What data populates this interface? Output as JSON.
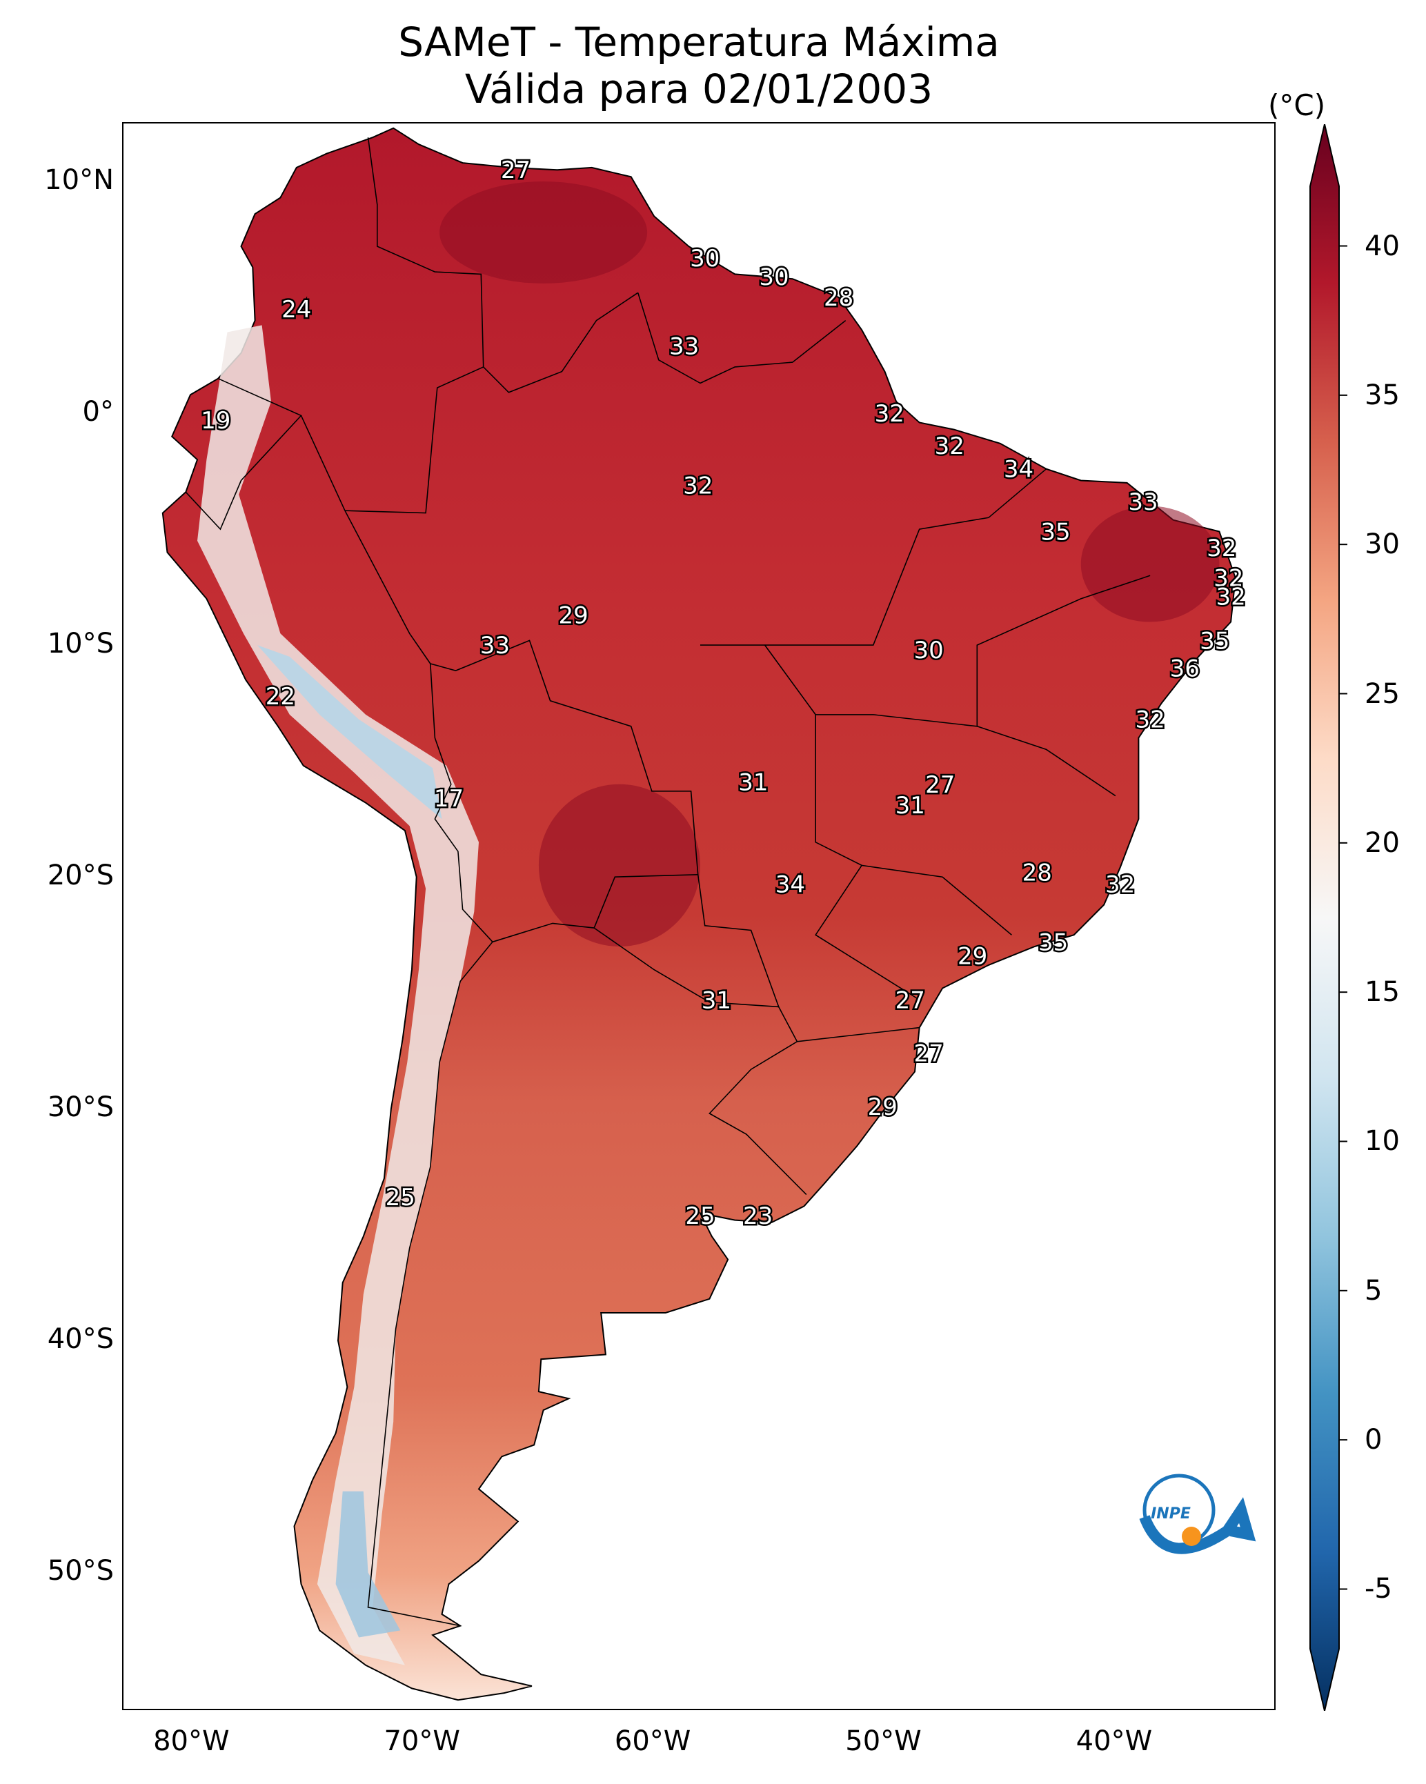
{
  "title": {
    "line1": "SAMeT - Temperatura Máxima",
    "line2": "Válida para 02/01/2003"
  },
  "map": {
    "lat_range": [
      -56,
      12.5
    ],
    "lon_range": [
      -83,
      -33
    ],
    "lat_labels": [
      {
        "lat": 10,
        "text": "10°N"
      },
      {
        "lat": 0,
        "text": "0°"
      },
      {
        "lat": -10,
        "text": "10°S"
      },
      {
        "lat": -20,
        "text": "20°S"
      },
      {
        "lat": -30,
        "text": "30°S"
      },
      {
        "lat": -40,
        "text": "40°S"
      },
      {
        "lat": -50,
        "text": "50°S"
      }
    ],
    "lon_labels": [
      {
        "lon": -80,
        "text": "80°W"
      },
      {
        "lon": -70,
        "text": "70°W"
      },
      {
        "lon": -60,
        "text": "60°W"
      },
      {
        "lon": -50,
        "text": "50°W"
      },
      {
        "lon": -40,
        "text": "40°W"
      }
    ],
    "contour_labels": [
      {
        "lon": -66,
        "lat": 10.5,
        "text": "27"
      },
      {
        "lon": -57.8,
        "lat": 6.7,
        "text": "30"
      },
      {
        "lon": -54.8,
        "lat": 5.9,
        "text": "30"
      },
      {
        "lon": -52,
        "lat": 5,
        "text": "28"
      },
      {
        "lon": -75.5,
        "lat": 4.5,
        "text": "24"
      },
      {
        "lon": -58.7,
        "lat": 2.9,
        "text": "33"
      },
      {
        "lon": -49.8,
        "lat": 0,
        "text": "32"
      },
      {
        "lon": -79,
        "lat": -0.3,
        "text": "19"
      },
      {
        "lon": -47.2,
        "lat": -1.4,
        "text": "32"
      },
      {
        "lon": -44.2,
        "lat": -2.4,
        "text": "34"
      },
      {
        "lon": -38.8,
        "lat": -3.8,
        "text": "33"
      },
      {
        "lon": -58.1,
        "lat": -3.1,
        "text": "32"
      },
      {
        "lon": -42.6,
        "lat": -5.1,
        "text": "35"
      },
      {
        "lon": -35.4,
        "lat": -5.8,
        "text": "32"
      },
      {
        "lon": -35.1,
        "lat": -7.1,
        "text": "32"
      },
      {
        "lon": -35,
        "lat": -7.9,
        "text": "32"
      },
      {
        "lon": -63.5,
        "lat": -8.7,
        "text": "29"
      },
      {
        "lon": -35.7,
        "lat": -9.8,
        "text": "35"
      },
      {
        "lon": -37,
        "lat": -11,
        "text": "36"
      },
      {
        "lon": -48.1,
        "lat": -10.2,
        "text": "30"
      },
      {
        "lon": -66.9,
        "lat": -10,
        "text": "33"
      },
      {
        "lon": -76.2,
        "lat": -12.2,
        "text": "22"
      },
      {
        "lon": -38.5,
        "lat": -13.2,
        "text": "32"
      },
      {
        "lon": -55.7,
        "lat": -15.9,
        "text": "31"
      },
      {
        "lon": -47.6,
        "lat": -16,
        "text": "27"
      },
      {
        "lon": -48.9,
        "lat": -16.9,
        "text": "31"
      },
      {
        "lon": -68.9,
        "lat": -16.6,
        "text": "17"
      },
      {
        "lon": -43.4,
        "lat": -19.8,
        "text": "28"
      },
      {
        "lon": -54.1,
        "lat": -20.3,
        "text": "34"
      },
      {
        "lon": -39.8,
        "lat": -20.3,
        "text": "32"
      },
      {
        "lon": -42.7,
        "lat": -22.8,
        "text": "35"
      },
      {
        "lon": -46.2,
        "lat": -23.4,
        "text": "29"
      },
      {
        "lon": -57.3,
        "lat": -25.3,
        "text": "31"
      },
      {
        "lon": -48.9,
        "lat": -25.3,
        "text": "27"
      },
      {
        "lon": -48.1,
        "lat": -27.6,
        "text": "27"
      },
      {
        "lon": -50.1,
        "lat": -29.9,
        "text": "29"
      },
      {
        "lon": -71,
        "lat": -33.8,
        "text": "25"
      },
      {
        "lon": -58,
        "lat": -34.6,
        "text": "25"
      },
      {
        "lon": -55.5,
        "lat": -34.6,
        "text": "23"
      }
    ]
  },
  "colorbar": {
    "unit": "(°C)",
    "range": [
      -7,
      42
    ],
    "ticks": [
      {
        "value": 40,
        "text": "40"
      },
      {
        "value": 35,
        "text": "35"
      },
      {
        "value": 30,
        "text": "30"
      },
      {
        "value": 25,
        "text": "25"
      },
      {
        "value": 20,
        "text": "20"
      },
      {
        "value": 15,
        "text": "15"
      },
      {
        "value": 10,
        "text": "10"
      },
      {
        "value": 5,
        "text": "5"
      },
      {
        "value": 0,
        "text": "0"
      },
      {
        "value": -5,
        "text": "-5"
      }
    ],
    "colors": [
      "#053061",
      "#2166ac",
      "#4393c3",
      "#92c5de",
      "#d1e5f0",
      "#f7f7f7",
      "#fddbc7",
      "#f4a582",
      "#d6604d",
      "#b2182b",
      "#67001f"
    ]
  },
  "logo": {
    "text": "INPE",
    "colors": {
      "arc": "#1b75bb",
      "dot": "#f7941d"
    }
  }
}
